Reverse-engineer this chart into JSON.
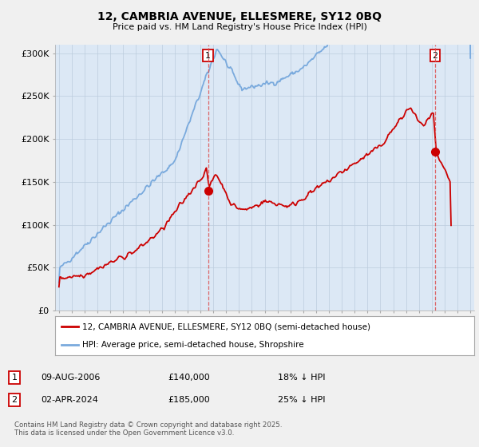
{
  "title": "12, CAMBRIA AVENUE, ELLESMERE, SY12 0BQ",
  "subtitle": "Price paid vs. HM Land Registry's House Price Index (HPI)",
  "legend_line1": "12, CAMBRIA AVENUE, ELLESMERE, SY12 0BQ (semi-detached house)",
  "legend_line2": "HPI: Average price, semi-detached house, Shropshire",
  "annotation1_num": "1",
  "annotation1_date": "09-AUG-2006",
  "annotation1_price": "£140,000",
  "annotation1_hpi": "18% ↓ HPI",
  "annotation2_num": "2",
  "annotation2_date": "02-APR-2024",
  "annotation2_price": "£185,000",
  "annotation2_hpi": "25% ↓ HPI",
  "footer": "Contains HM Land Registry data © Crown copyright and database right 2025.\nThis data is licensed under the Open Government Licence v3.0.",
  "red_color": "#cc0000",
  "blue_color": "#7aaadd",
  "vline_color": "#dd4444",
  "ylim": [
    0,
    310000
  ],
  "xlim_start": 1994.7,
  "xlim_end": 2027.3,
  "sale1_year": 2006.6,
  "sale1_price": 140000,
  "sale2_year": 2024.25,
  "sale2_price": 185000,
  "bg_color": "#f0f0f0",
  "plot_bg": "#dce8f5"
}
